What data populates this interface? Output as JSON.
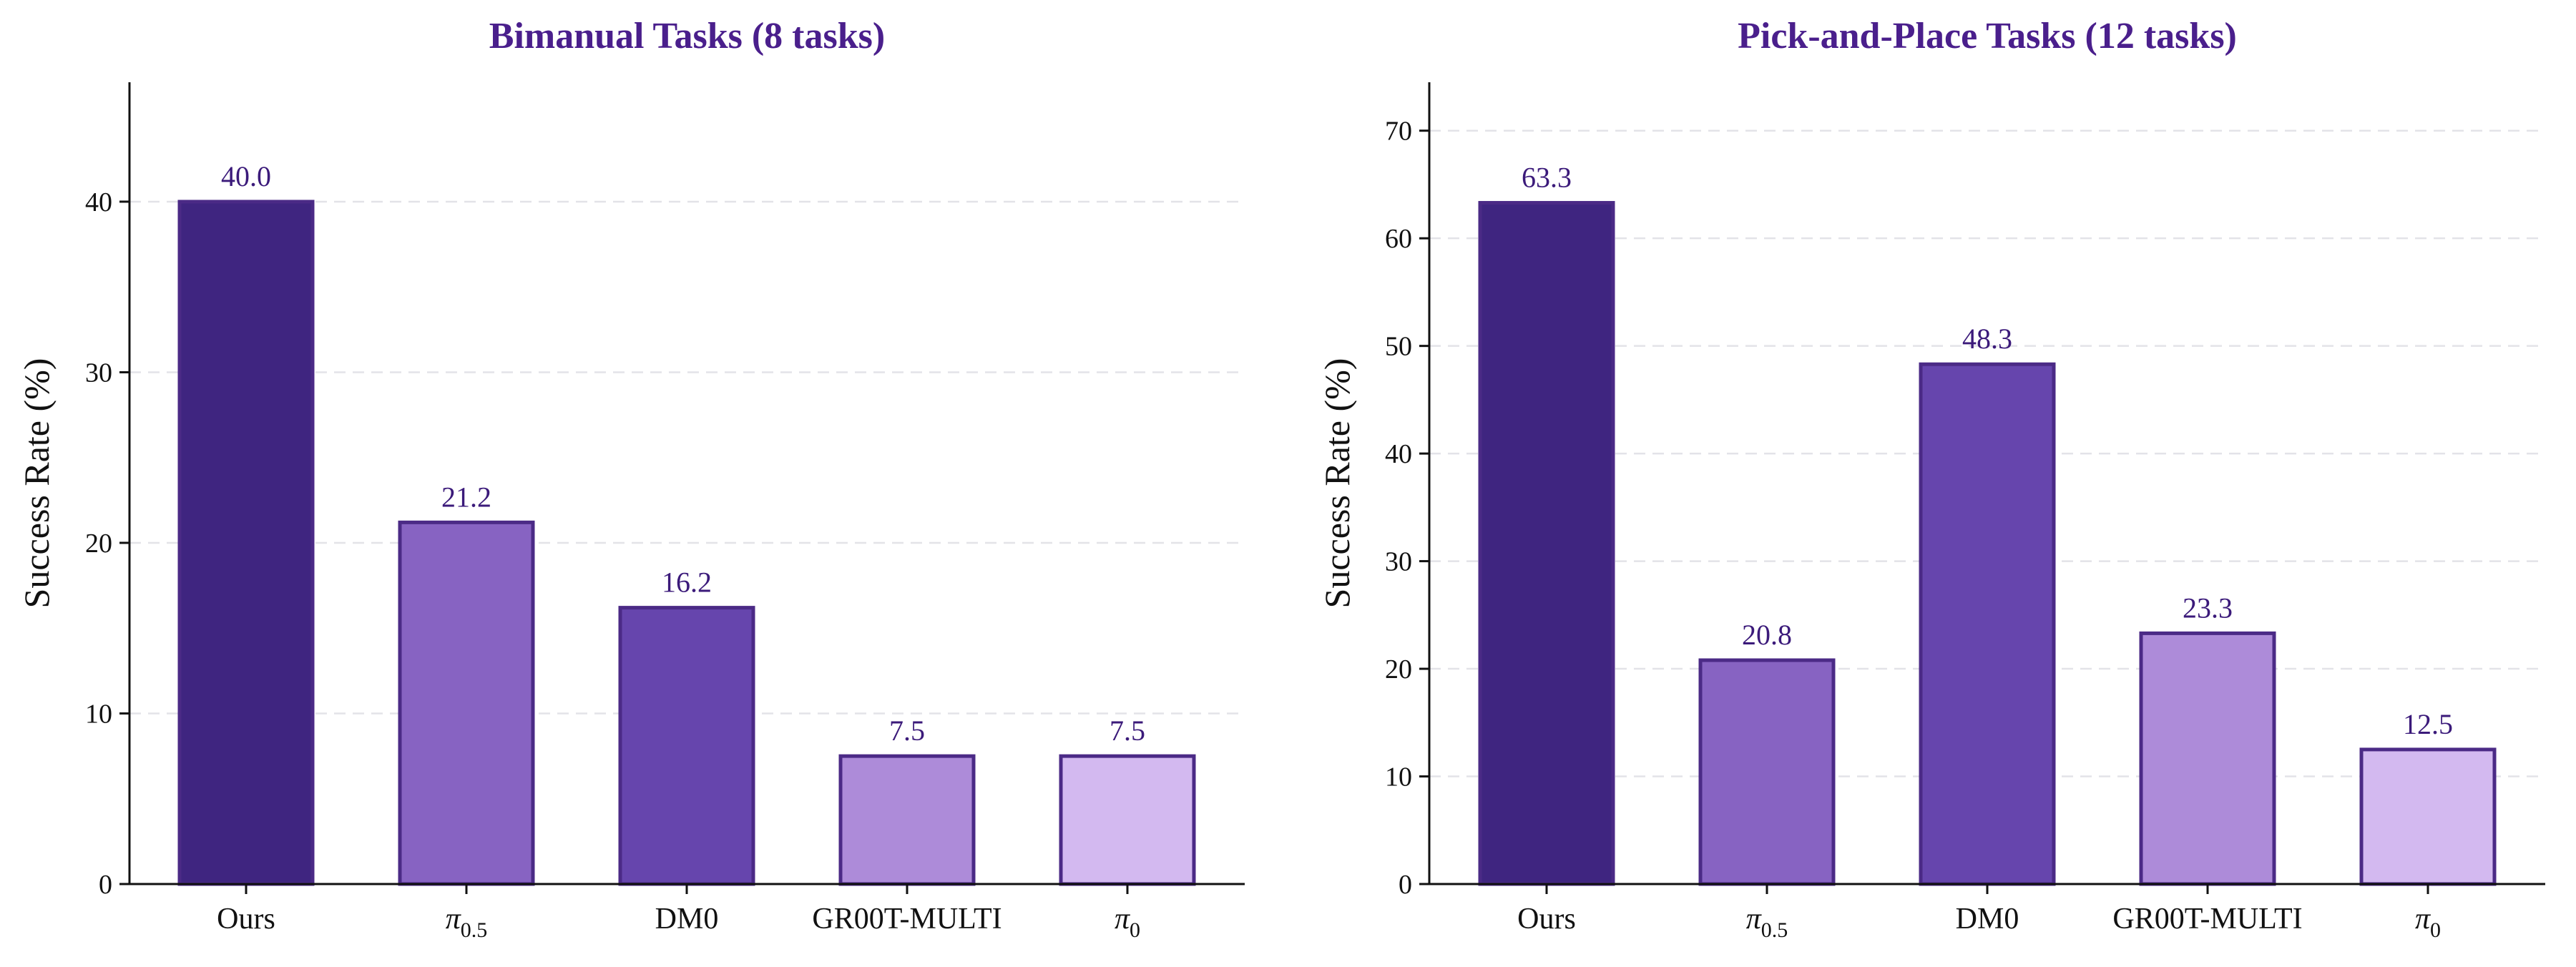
{
  "colors": {
    "title": "#4a1f8c",
    "value_label": "#3b1a7a",
    "bar_edge": "#4b2a86",
    "bars": [
      "#3f2580",
      "#8763c2",
      "#6645ad",
      "#ad8bd9",
      "#d3b9f0"
    ]
  },
  "chart_data": [
    {
      "type": "bar",
      "title": "Bimanual Tasks (8 tasks)",
      "xlabel": "",
      "ylabel": "Success Rate (%)",
      "categories": [
        {
          "base": "Ours",
          "sub": ""
        },
        {
          "base": "π",
          "sub": "0.5"
        },
        {
          "base": "DM0",
          "sub": ""
        },
        {
          "base": "GR00T-MULTI",
          "sub": ""
        },
        {
          "base": "π",
          "sub": "0"
        }
      ],
      "values": [
        40.0,
        21.2,
        16.2,
        7.5,
        7.5
      ],
      "value_labels": [
        "40.0",
        "21.2",
        "16.2",
        "7.5",
        "7.5"
      ],
      "yticks": [
        0,
        10,
        20,
        30,
        40
      ],
      "ylim": [
        0,
        47
      ],
      "grid": true
    },
    {
      "type": "bar",
      "title": "Pick-and-Place Tasks (12 tasks)",
      "xlabel": "",
      "ylabel": "Success Rate (%)",
      "categories": [
        {
          "base": "Ours",
          "sub": ""
        },
        {
          "base": "π",
          "sub": "0.5"
        },
        {
          "base": "DM0",
          "sub": ""
        },
        {
          "base": "GR00T-MULTI",
          "sub": ""
        },
        {
          "base": "π",
          "sub": "0"
        }
      ],
      "values": [
        63.3,
        20.8,
        48.3,
        23.3,
        12.5
      ],
      "value_labels": [
        "63.3",
        "20.8",
        "48.3",
        "23.3",
        "12.5"
      ],
      "yticks": [
        0,
        10,
        20,
        30,
        40,
        50,
        60,
        70
      ],
      "ylim": [
        0,
        74.5
      ],
      "grid": true
    }
  ]
}
